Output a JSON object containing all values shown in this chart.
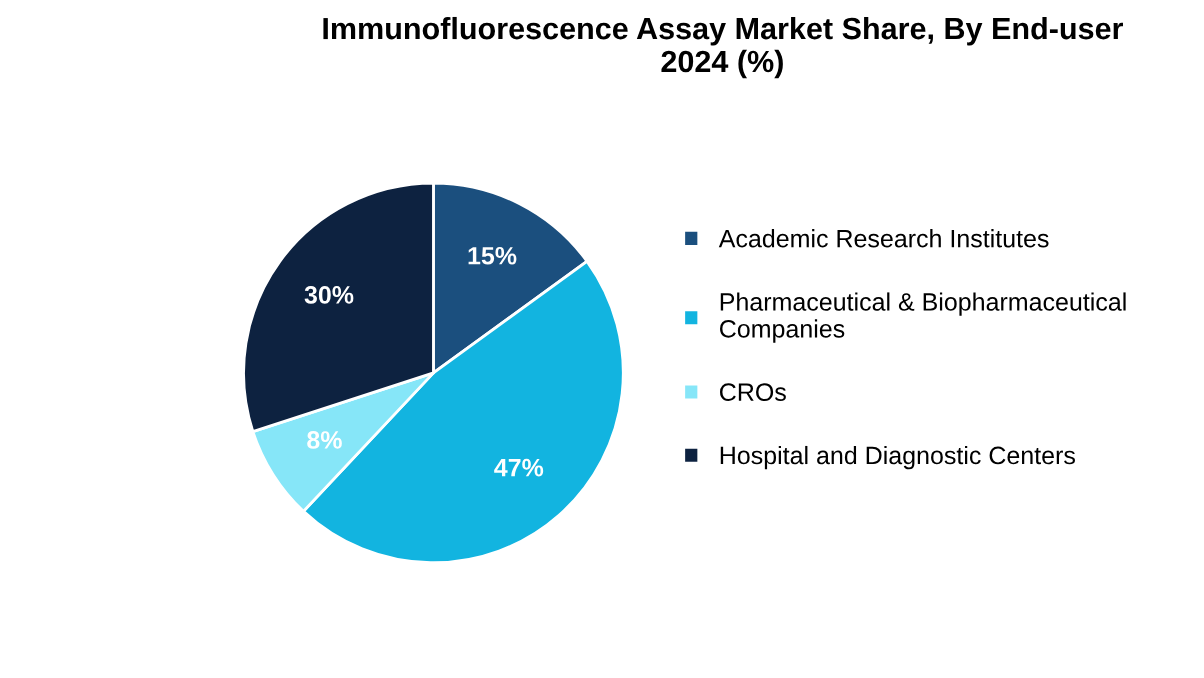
{
  "chart_data": {
    "type": "pie",
    "title": "Immunofluorescence Assay Market Share, By End-user\n2024 (%)",
    "categories": [
      "Academic Research Institutes",
      "Pharmaceutical & Biopharmaceutical\nCompanies",
      "CROs",
      "Hospital and Diagnostic Centers"
    ],
    "values": [
      15,
      47,
      8,
      30
    ],
    "colors": [
      "#1b4f7e",
      "#12b4e0",
      "#86e6f8",
      "#0d2240"
    ],
    "value_labels": [
      "15%",
      "47%",
      "8%",
      "30%"
    ],
    "legend": "right"
  }
}
